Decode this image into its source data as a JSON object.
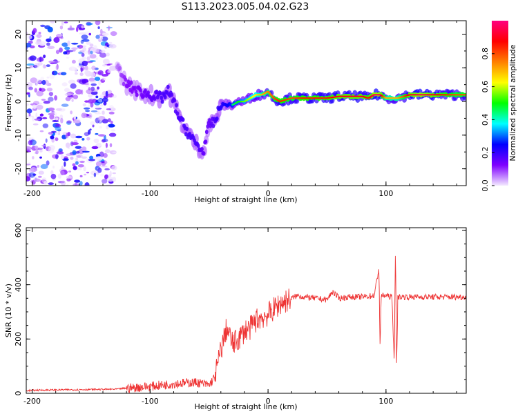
{
  "page_title": "S113.2023.005.04.02.G23",
  "chart_data": [
    {
      "type": "heatmap",
      "title": "S113.2023.005.04.02.G23",
      "xlabel": "Height of straight line (km)",
      "ylabel": "Frequency (Hz)",
      "xlim": [
        -205,
        168
      ],
      "ylim": [
        -25,
        24
      ],
      "x_ticks": [
        -200,
        -100,
        0,
        100
      ],
      "y_ticks": [
        -20,
        -10,
        0,
        10,
        20
      ],
      "colorbar": {
        "label": "Normalized spectral amplitude",
        "range": [
          0,
          1
        ],
        "ticks": [
          0.0,
          0.2,
          0.4,
          0.6,
          0.8
        ],
        "colors": [
          "#f3e9ff",
          "#7f00ff",
          "#0000ff",
          "#00ffff",
          "#00ff00",
          "#ffff00",
          "#ff7f00",
          "#ff0000",
          "#ff0080"
        ]
      },
      "ridge": {
        "name": "",
        "x": [
          -128,
          -120,
          -110,
          -100,
          -90,
          -85,
          -80,
          -75,
          -70,
          -65,
          -60,
          -55,
          -50,
          -45,
          -40,
          -35,
          -30,
          -25,
          -20,
          -15,
          -10,
          -5,
          0,
          5,
          10,
          20,
          30,
          40,
          50,
          60,
          70,
          80,
          85,
          90,
          95,
          100,
          110,
          120,
          130,
          140,
          150,
          160,
          168
        ],
        "frequency": [
          10,
          5,
          3,
          2,
          1,
          3,
          0,
          -5,
          -8,
          -11,
          -13,
          -15,
          -7,
          -6,
          -1,
          -1,
          -1,
          0,
          0,
          1,
          2,
          2,
          3,
          1,
          0,
          1,
          1,
          1,
          1,
          1.5,
          1.5,
          1.5,
          1,
          2,
          2,
          1,
          1,
          2,
          2,
          2,
          2,
          2,
          2
        ],
        "amplitude": [
          0.1,
          0.2,
          0.22,
          0.25,
          0.3,
          0.3,
          0.28,
          0.3,
          0.3,
          0.3,
          0.3,
          0.25,
          0.25,
          0.3,
          0.35,
          0.4,
          0.45,
          0.5,
          0.55,
          0.6,
          0.65,
          0.7,
          0.75,
          0.8,
          0.85,
          0.8,
          0.85,
          0.85,
          0.85,
          0.9,
          0.9,
          0.9,
          0.85,
          0.95,
          0.95,
          0.7,
          0.7,
          0.9,
          0.95,
          0.9,
          0.85,
          0.8,
          0.8
        ]
      },
      "noise_region_x": [
        -205,
        -130
      ]
    },
    {
      "type": "line",
      "xlabel": "Height of straight line (km)",
      "ylabel": "SNR (10 * v/v)",
      "xlim": [
        -205,
        168
      ],
      "ylim": [
        0,
        610
      ],
      "x_ticks": [
        -200,
        -100,
        0,
        100
      ],
      "y_ticks": [
        0,
        200,
        400,
        600
      ],
      "series": [
        {
          "color": "#ee3333",
          "x": [
            -205,
            -190,
            -170,
            -150,
            -130,
            -122,
            -115,
            -110,
            -100,
            -90,
            -80,
            -70,
            -60,
            -50,
            -45,
            -40,
            -35,
            -30,
            -25,
            -20,
            -15,
            -10,
            -5,
            0,
            5,
            10,
            20,
            25,
            30,
            40,
            50,
            55,
            60,
            70,
            80,
            90,
            94,
            95,
            96,
            100,
            105,
            107,
            108,
            109,
            110,
            120,
            130,
            140,
            150,
            160,
            168
          ],
          "y": [
            10,
            12,
            13,
            14,
            15,
            18,
            20,
            22,
            25,
            30,
            35,
            38,
            40,
            30,
            60,
            160,
            240,
            180,
            200,
            230,
            240,
            270,
            280,
            290,
            310,
            330,
            350,
            360,
            355,
            350,
            345,
            375,
            350,
            355,
            355,
            360,
            460,
            165,
            360,
            360,
            355,
            110,
            560,
            80,
            355,
            355,
            355,
            355,
            355,
            355,
            355
          ]
        }
      ]
    }
  ]
}
